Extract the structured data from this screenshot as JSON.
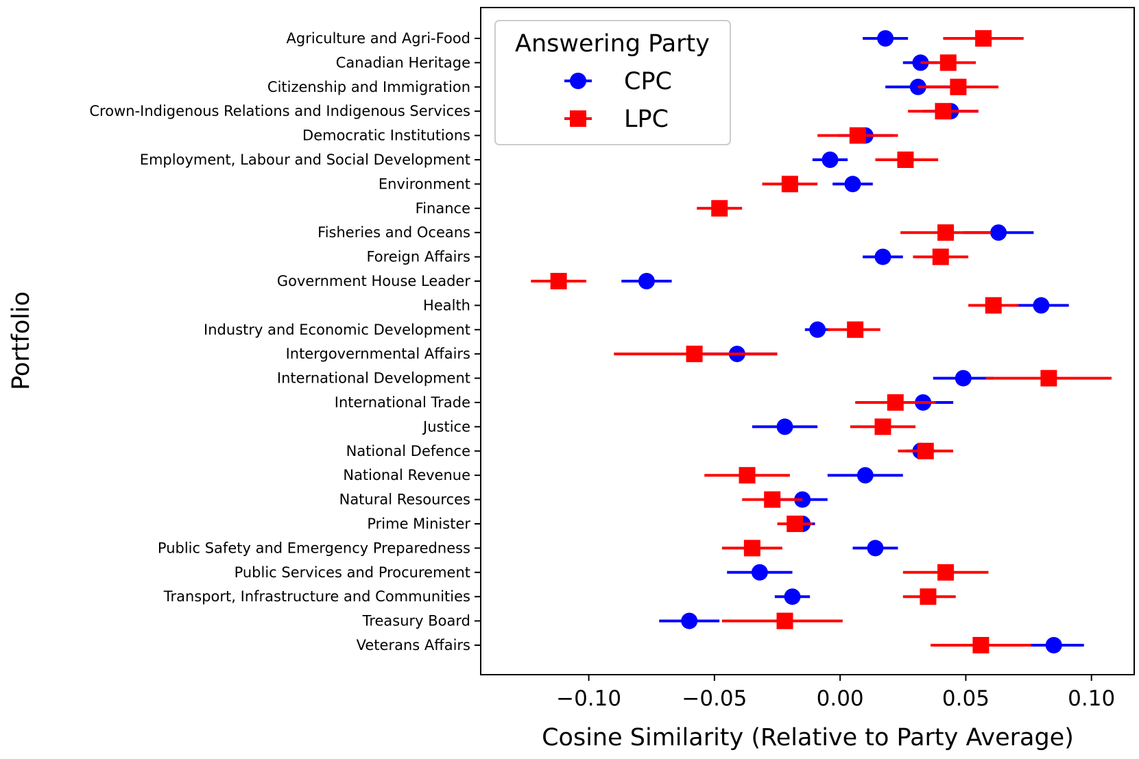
{
  "chart_data": {
    "type": "scatter",
    "title": "",
    "xlabel": "Cosine Similarity (Relative to Party Average)",
    "ylabel": "Portfolio",
    "xlim": [
      -0.143,
      0.117
    ],
    "xticks": [
      -0.1,
      -0.05,
      0.0,
      0.05,
      0.1
    ],
    "xtick_labels": [
      "−0.10",
      "−0.05",
      "0.00",
      "0.05",
      "0.10"
    ],
    "grid": false,
    "legend": {
      "title": "Answering Party",
      "placement": "top-left"
    },
    "categories": [
      "Agriculture and Agri-Food",
      "Canadian Heritage",
      "Citizenship and Immigration",
      "Crown-Indigenous Relations and Indigenous Services",
      "Democratic Institutions",
      "Employment, Labour and Social Development",
      "Environment",
      "Finance",
      "Fisheries and Oceans",
      "Foreign Affairs",
      "Government House Leader",
      "Health",
      "Industry and Economic Development",
      "Intergovernmental Affairs",
      "International Development",
      "International Trade",
      "Justice",
      "National Defence",
      "National Revenue",
      "Natural Resources",
      "Prime Minister",
      "Public Safety and Emergency Preparedness",
      "Public Services and Procurement",
      "Transport, Infrastructure and Communities",
      "Treasury Board",
      "Veterans Affairs"
    ],
    "series": [
      {
        "name": "CPC",
        "color": "#0000ff",
        "marker": "circle",
        "values": [
          0.018,
          0.032,
          0.031,
          0.044,
          0.01,
          -0.004,
          0.005,
          null,
          0.063,
          0.017,
          -0.077,
          0.08,
          -0.009,
          -0.041,
          0.049,
          0.033,
          -0.022,
          0.032,
          0.01,
          -0.015,
          -0.015,
          0.014,
          -0.032,
          -0.019,
          -0.06,
          0.085
        ],
        "err_low": [
          0.009,
          0.025,
          0.018,
          0.033,
          -0.001,
          -0.011,
          -0.003,
          null,
          0.049,
          0.009,
          -0.087,
          0.07,
          -0.014,
          -0.057,
          0.037,
          0.021,
          -0.035,
          0.026,
          -0.005,
          -0.025,
          -0.02,
          0.005,
          -0.045,
          -0.026,
          -0.072,
          0.074
        ],
        "err_high": [
          0.027,
          0.039,
          0.044,
          0.055,
          0.021,
          0.003,
          0.013,
          null,
          0.077,
          0.025,
          -0.067,
          0.091,
          -0.004,
          -0.025,
          0.061,
          0.045,
          -0.009,
          0.038,
          0.025,
          -0.005,
          -0.01,
          0.023,
          -0.019,
          -0.012,
          -0.048,
          0.097
        ]
      },
      {
        "name": "LPC",
        "color": "#ff0000",
        "marker": "square",
        "values": [
          0.057,
          0.043,
          0.047,
          0.041,
          0.007,
          0.026,
          -0.02,
          -0.048,
          0.042,
          0.04,
          -0.112,
          0.061,
          0.006,
          -0.058,
          0.083,
          0.022,
          0.017,
          0.034,
          -0.037,
          -0.027,
          -0.018,
          -0.035,
          0.042,
          0.035,
          -0.022,
          0.056
        ],
        "err_low": [
          0.041,
          0.032,
          0.031,
          0.027,
          -0.009,
          0.014,
          -0.031,
          -0.057,
          0.024,
          0.029,
          -0.123,
          0.051,
          -0.005,
          -0.09,
          0.058,
          0.006,
          0.004,
          0.023,
          -0.054,
          -0.039,
          -0.025,
          -0.047,
          0.025,
          0.025,
          -0.047,
          0.036
        ],
        "err_high": [
          0.073,
          0.054,
          0.063,
          0.055,
          0.023,
          0.039,
          -0.009,
          -0.039,
          0.06,
          0.051,
          -0.101,
          0.071,
          0.016,
          -0.025,
          0.108,
          0.038,
          0.03,
          0.045,
          -0.02,
          -0.015,
          -0.011,
          -0.023,
          0.059,
          0.046,
          0.001,
          0.076
        ]
      }
    ]
  }
}
